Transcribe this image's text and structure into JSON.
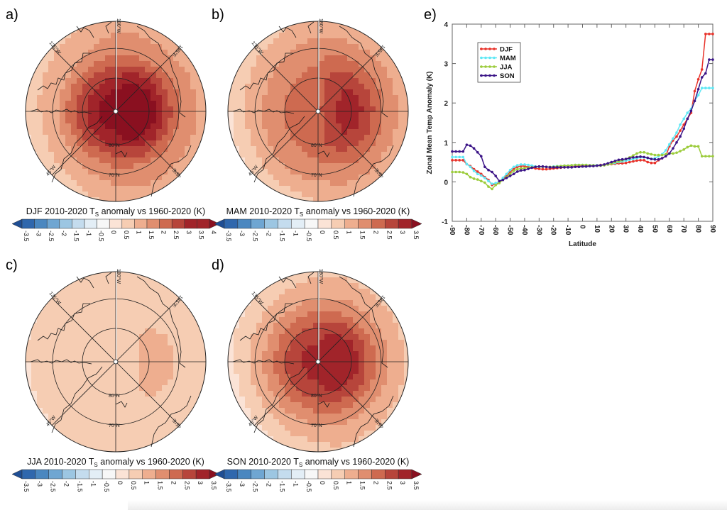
{
  "panels": [
    {
      "id": "a",
      "label": "a)",
      "season": "DJF",
      "title_pre": "DJF 2010-2020 T",
      "title_sub": "S",
      "title_post": " anomaly vs 1960-2020 (K)",
      "cb_ticks": [
        "-3.5",
        "-3",
        "-2.5",
        "-2",
        "-1.5",
        "-1",
        "-0.5",
        "0",
        "0.5",
        "1",
        "1.5",
        "2",
        "2.5",
        "3",
        "3.5",
        "4"
      ],
      "field": {
        "pole": 4.2,
        "ring80": 3.2,
        "ring70": 1.8,
        "outer": 1.3,
        "east_boost": 0.8,
        "west_cool": 0.6
      }
    },
    {
      "id": "b",
      "label": "b)",
      "season": "MAM",
      "title_pre": "MAM 2010-2020 T",
      "title_sub": "S",
      "title_post": " anomaly vs 1960-2020 (K)",
      "cb_ticks": [
        "-3.5",
        "-3",
        "-2.5",
        "-2",
        "-1.5",
        "-1",
        "-0.5",
        "0",
        "0.5",
        "1",
        "1.5",
        "2",
        "2.5",
        "3",
        "3.5"
      ],
      "field": {
        "pole": 2.3,
        "ring80": 2.3,
        "ring70": 1.8,
        "outer": 1.2,
        "east_boost": 1.0,
        "west_cool": 0.6
      }
    },
    {
      "id": "c",
      "label": "c)",
      "season": "JJA",
      "title_pre": "JJA 2010-2020 T",
      "title_sub": "S",
      "title_post": " anomaly vs 1960-2020 (K)",
      "cb_ticks": [
        "-3.5",
        "-3",
        "-2.5",
        "-2",
        "-1.5",
        "-1",
        "-0.5",
        "0",
        "0.5",
        "1",
        "1.5",
        "2",
        "2.5",
        "3",
        "3.5"
      ],
      "field": {
        "pole": 0.6,
        "ring80": 0.7,
        "ring70": 0.8,
        "outer": 0.6,
        "east_boost": 0.4,
        "west_cool": 0.1
      }
    },
    {
      "id": "d",
      "label": "d)",
      "season": "SON",
      "title_pre": "SON 2010-2020 T",
      "title_sub": "S",
      "title_post": " anomaly vs 1960-2020 (K)",
      "cb_ticks": [
        "-3.5",
        "-3",
        "-2.5",
        "-2",
        "-1.5",
        "-1",
        "-0.5",
        "0",
        "0.5",
        "1",
        "1.5",
        "2",
        "2.5",
        "3",
        "3.5"
      ],
      "field": {
        "pole": 3.4,
        "ring80": 2.8,
        "ring70": 1.6,
        "outer": 0.9,
        "east_boost": 0.6,
        "west_cool": 0.5
      }
    }
  ],
  "map_labels": {
    "lon_180": "180°W",
    "lon_135w": "135°W",
    "lon_135e": "135°E",
    "lon_45w": "45°W",
    "lon_45e": "45°E",
    "lat_80": "80°N",
    "lat_70": "70°N"
  },
  "colorbar_colors": [
    "#1f4e94",
    "#2f67ad",
    "#4a87c0",
    "#6fa6d2",
    "#9cc6e2",
    "#c4dcee",
    "#e3eef6",
    "#f7f7f7",
    "#fbe3d6",
    "#f6cdb3",
    "#eeae8f",
    "#e08e6f",
    "#ce6a50",
    "#b7453b",
    "#a1242a",
    "#8a1020"
  ],
  "chart_data": {
    "type": "line",
    "panel_label": "e)",
    "title": "",
    "xlabel": "Latitude",
    "ylabel": "Zonal Mean Temp Anomaly (K)",
    "xlim": [
      -90,
      90
    ],
    "ylim": [
      -1,
      4
    ],
    "xticks": [
      -90,
      -80,
      -70,
      -60,
      -50,
      -40,
      -30,
      -20,
      -10,
      0,
      10,
      20,
      30,
      40,
      50,
      60,
      70,
      80,
      90
    ],
    "yticks": [
      -1,
      0,
      1,
      2,
      3,
      4
    ],
    "legend_position": "top-left",
    "x": [
      -90,
      -87.5,
      -85,
      -82.5,
      -80,
      -77.5,
      -75,
      -72.5,
      -70,
      -67.5,
      -65,
      -62.5,
      -60,
      -57.5,
      -55,
      -52.5,
      -50,
      -47.5,
      -45,
      -42.5,
      -40,
      -37.5,
      -35,
      -32.5,
      -30,
      -27.5,
      -25,
      -22.5,
      -20,
      -17.5,
      -15,
      -12.5,
      -10,
      -7.5,
      -5,
      -2.5,
      0,
      2.5,
      5,
      7.5,
      10,
      12.5,
      15,
      17.5,
      20,
      22.5,
      25,
      27.5,
      30,
      32.5,
      35,
      37.5,
      40,
      42.5,
      45,
      47.5,
      50,
      52.5,
      55,
      57.5,
      60,
      62.5,
      65,
      67.5,
      70,
      72.5,
      75,
      77.5,
      80,
      82.5,
      85,
      87.5,
      90
    ],
    "series": [
      {
        "name": "DJF",
        "color": "#e8322a",
        "values": [
          0.55,
          0.55,
          0.55,
          0.55,
          0.45,
          0.4,
          0.32,
          0.26,
          0.2,
          0.12,
          0.05,
          -0.08,
          -0.05,
          0.0,
          0.08,
          0.15,
          0.25,
          0.33,
          0.38,
          0.4,
          0.4,
          0.38,
          0.36,
          0.34,
          0.33,
          0.32,
          0.32,
          0.33,
          0.34,
          0.35,
          0.36,
          0.37,
          0.38,
          0.38,
          0.39,
          0.4,
          0.4,
          0.41,
          0.41,
          0.41,
          0.42,
          0.43,
          0.43,
          0.44,
          0.45,
          0.46,
          0.47,
          0.47,
          0.48,
          0.5,
          0.52,
          0.54,
          0.55,
          0.55,
          0.5,
          0.48,
          0.48,
          0.55,
          0.6,
          0.65,
          0.9,
          1.05,
          1.15,
          1.3,
          1.45,
          1.6,
          1.75,
          2.3,
          2.6,
          2.85,
          3.75,
          3.75,
          3.75
        ]
      },
      {
        "name": "MAM",
        "color": "#5fe8f5",
        "values": [
          0.63,
          0.63,
          0.63,
          0.63,
          0.45,
          0.38,
          0.28,
          0.2,
          0.16,
          0.1,
          0.02,
          -0.05,
          -0.03,
          0.0,
          0.1,
          0.2,
          0.3,
          0.38,
          0.42,
          0.44,
          0.44,
          0.43,
          0.41,
          0.39,
          0.38,
          0.38,
          0.38,
          0.38,
          0.39,
          0.4,
          0.4,
          0.41,
          0.41,
          0.42,
          0.43,
          0.43,
          0.43,
          0.43,
          0.42,
          0.42,
          0.42,
          0.42,
          0.43,
          0.44,
          0.46,
          0.48,
          0.5,
          0.52,
          0.54,
          0.56,
          0.58,
          0.6,
          0.62,
          0.62,
          0.6,
          0.58,
          0.6,
          0.65,
          0.7,
          0.8,
          0.95,
          1.1,
          1.25,
          1.45,
          1.6,
          1.75,
          1.85,
          2.05,
          2.2,
          2.38,
          2.38,
          2.38,
          2.38
        ]
      },
      {
        "name": "JJA",
        "color": "#9ccc3c",
        "values": [
          0.25,
          0.25,
          0.25,
          0.24,
          0.2,
          0.12,
          0.08,
          0.06,
          0.02,
          -0.02,
          -0.12,
          -0.18,
          -0.08,
          -0.03,
          0.05,
          0.12,
          0.2,
          0.28,
          0.32,
          0.34,
          0.35,
          0.36,
          0.37,
          0.38,
          0.38,
          0.38,
          0.38,
          0.38,
          0.38,
          0.39,
          0.4,
          0.41,
          0.41,
          0.42,
          0.43,
          0.43,
          0.43,
          0.43,
          0.42,
          0.42,
          0.41,
          0.41,
          0.42,
          0.44,
          0.46,
          0.5,
          0.52,
          0.55,
          0.58,
          0.62,
          0.67,
          0.72,
          0.75,
          0.75,
          0.72,
          0.7,
          0.68,
          0.68,
          0.68,
          0.7,
          0.72,
          0.72,
          0.74,
          0.78,
          0.82,
          0.88,
          0.92,
          0.9,
          0.9,
          0.65,
          0.65,
          0.65,
          0.65
        ]
      },
      {
        "name": "SON",
        "color": "#3b1487",
        "values": [
          0.77,
          0.77,
          0.77,
          0.77,
          0.94,
          0.92,
          0.85,
          0.75,
          0.65,
          0.38,
          0.3,
          0.25,
          0.15,
          0.02,
          0.05,
          0.1,
          0.15,
          0.2,
          0.26,
          0.29,
          0.3,
          0.33,
          0.36,
          0.38,
          0.39,
          0.39,
          0.38,
          0.37,
          0.37,
          0.37,
          0.37,
          0.37,
          0.37,
          0.37,
          0.38,
          0.38,
          0.39,
          0.39,
          0.4,
          0.4,
          0.41,
          0.42,
          0.44,
          0.47,
          0.5,
          0.53,
          0.56,
          0.57,
          0.58,
          0.6,
          0.62,
          0.63,
          0.64,
          0.63,
          0.61,
          0.58,
          0.57,
          0.57,
          0.6,
          0.65,
          0.72,
          0.85,
          1.0,
          1.15,
          1.35,
          1.6,
          1.8,
          2.05,
          2.35,
          2.65,
          2.75,
          3.1,
          3.1
        ]
      }
    ]
  }
}
